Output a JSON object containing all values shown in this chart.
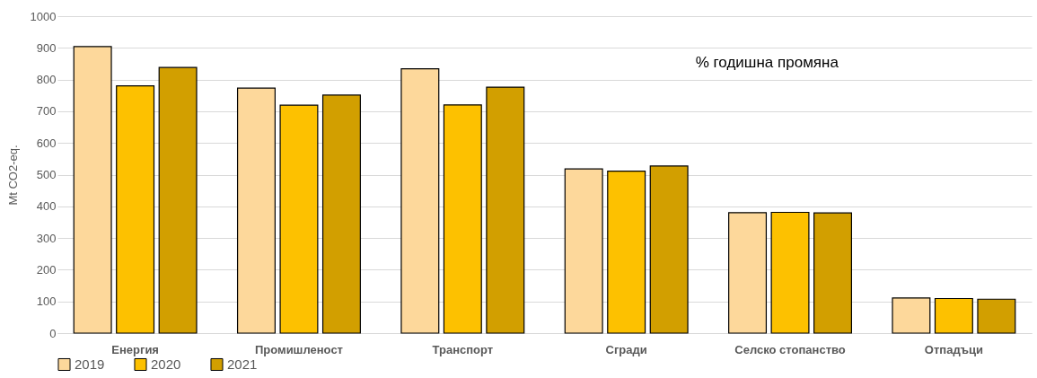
{
  "chart_data": {
    "type": "bar",
    "ylabel": "Mt CO2-eq.",
    "categories": [
      "Енергия",
      "Промишленост",
      "Транспорт",
      "Сгради",
      "Селско стопанство",
      "Отпадъци"
    ],
    "series": [
      {
        "name": "2019",
        "color": "#fdd89b",
        "values": [
          904,
          773,
          834,
          518,
          380,
          111
        ]
      },
      {
        "name": "2020",
        "color": "#fdc100",
        "values": [
          780,
          719,
          720,
          511,
          381,
          109
        ]
      },
      {
        "name": "2021",
        "color": "#d29f00",
        "values": [
          838,
          751,
          776,
          527,
          379,
          107
        ]
      }
    ],
    "ylim": [
      0,
      1000
    ],
    "yticks": [
      0,
      100,
      200,
      300,
      400,
      500,
      600,
      700,
      800,
      900,
      1000
    ],
    "grid": "y",
    "legend": "bottom",
    "annotations": [
      "% годишна промяна"
    ]
  }
}
